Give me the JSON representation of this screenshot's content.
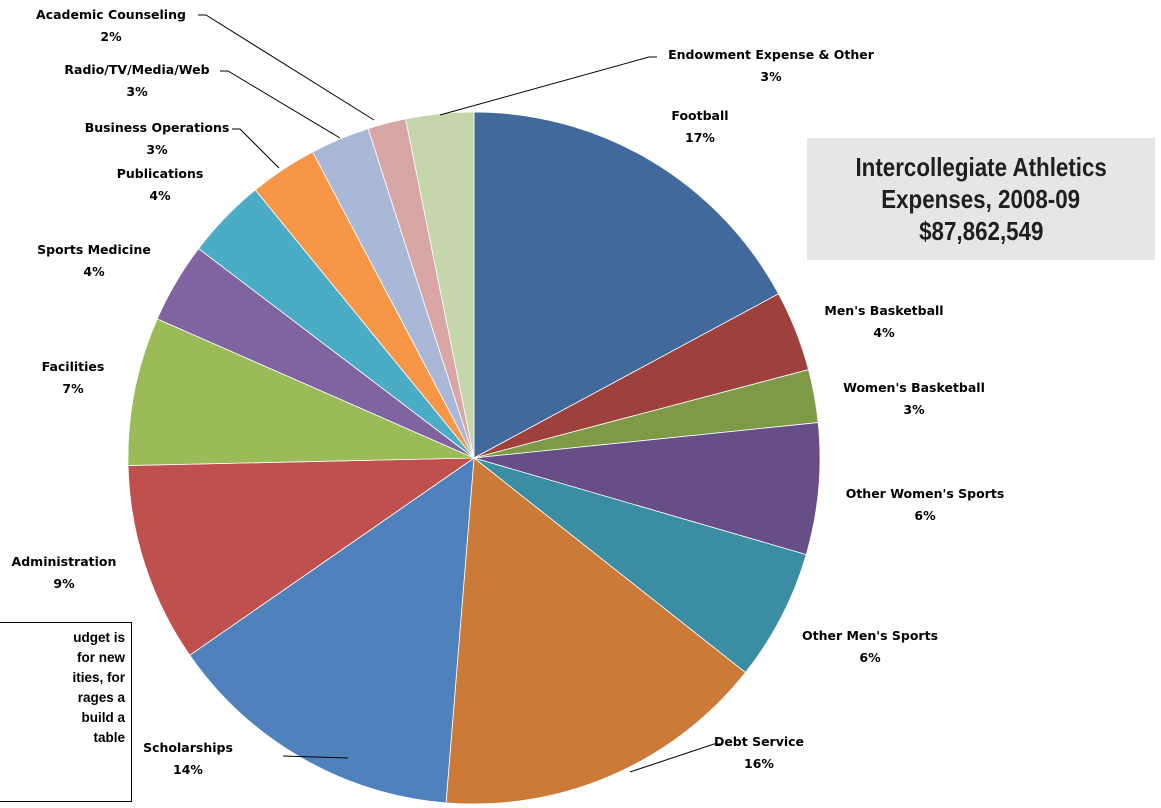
{
  "chart_data": {
    "type": "pie",
    "title_lines": [
      "Intercollegiate Athletics",
      "Expenses, 2008-09",
      "$87,862,549"
    ],
    "start_angle_deg": 0,
    "direction": "clockwise",
    "slices": [
      {
        "label": "Football",
        "percent_label": "17%",
        "value": 17.3,
        "color": "#41699b"
      },
      {
        "label": "Men's Basketball",
        "percent_label": "4%",
        "value": 3.8,
        "color": "#9e403d"
      },
      {
        "label": "Women's Basketball",
        "percent_label": "3%",
        "value": 2.5,
        "color": "#7e9a47"
      },
      {
        "label": "Other Women's Sports",
        "percent_label": "6%",
        "value": 6.2,
        "color": "#674e87"
      },
      {
        "label": "Other Men's Sports",
        "percent_label": "6%",
        "value": 6.2,
        "color": "#3b8da3"
      },
      {
        "label": "Debt Service",
        "percent_label": "16%",
        "value": 15.8,
        "color": "#cc7a37"
      },
      {
        "label": "Scholarships",
        "percent_label": "14%",
        "value": 14.2,
        "color": "#4f81bd"
      },
      {
        "label": "Administration",
        "percent_label": "9%",
        "value": 9.4,
        "color": "#c0504d"
      },
      {
        "label": "Facilities",
        "percent_label": "7%",
        "value": 7.0,
        "color": "#9bbb59"
      },
      {
        "label": "Sports Medicine",
        "percent_label": "4%",
        "value": 3.8,
        "color": "#8064a2"
      },
      {
        "label": "Publications",
        "percent_label": "4%",
        "value": 3.8,
        "color": "#4bacc6"
      },
      {
        "label": "Business Operations",
        "percent_label": "3%",
        "value": 3.2,
        "color": "#f79646"
      },
      {
        "label": "Radio/TV/Media/Web",
        "percent_label": "3%",
        "value": 2.8,
        "color": "#aab8d8"
      },
      {
        "label": "Academic Counseling",
        "percent_label": "2%",
        "value": 1.8,
        "color": "#d9a6a6"
      },
      {
        "label": "Endowment Expense & Other",
        "percent_label": "3%",
        "value": 3.2,
        "color": "#c5d6ab"
      }
    ]
  },
  "note": {
    "lines": [
      "udget is",
      "for new",
      "ities, for",
      "rages a",
      "build a",
      "table"
    ]
  }
}
